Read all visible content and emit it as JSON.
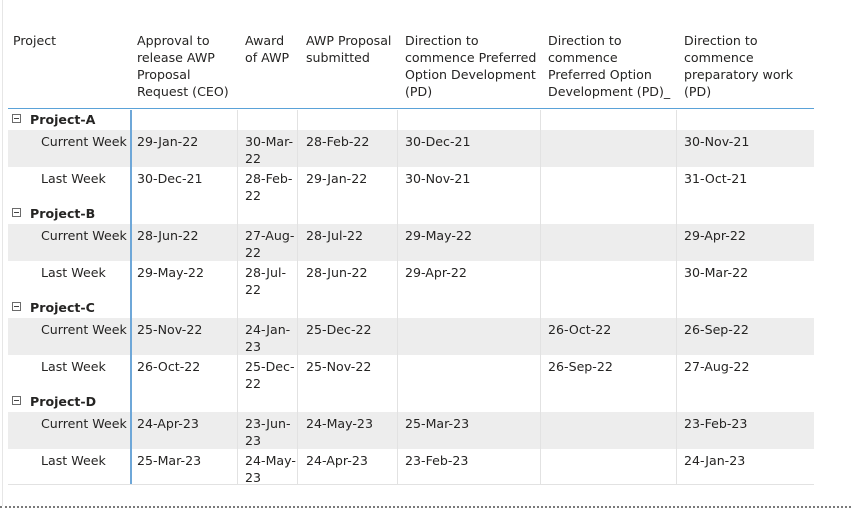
{
  "table": {
    "columns": [
      "Project",
      "Approval to release AWP Proposal Request (CEO)",
      "Award of AWP",
      "AWP Proposal submitted",
      "Direction to commence Preferred Option Development (PD)",
      "Direction to commence Preferred Option Development (PD)_",
      "Direction to commence preparatory work (PD)"
    ],
    "groups": [
      {
        "name": "Project-A",
        "rows": [
          {
            "label": "Current Week",
            "values": [
              "29-Jan-22",
              "30-Mar-22",
              "28-Feb-22",
              "30-Dec-21",
              "",
              "30-Nov-21"
            ]
          },
          {
            "label": "Last Week",
            "values": [
              "30-Dec-21",
              "28-Feb-22",
              "29-Jan-22",
              "30-Nov-21",
              "",
              "31-Oct-21"
            ]
          }
        ]
      },
      {
        "name": "Project-B",
        "rows": [
          {
            "label": "Current Week",
            "values": [
              "28-Jun-22",
              "27-Aug-22",
              "28-Jul-22",
              "29-May-22",
              "",
              "29-Apr-22"
            ]
          },
          {
            "label": "Last Week",
            "values": [
              "29-May-22",
              "28-Jul-22",
              "28-Jun-22",
              "29-Apr-22",
              "",
              "30-Mar-22"
            ]
          }
        ]
      },
      {
        "name": "Project-C",
        "rows": [
          {
            "label": "Current Week",
            "values": [
              "25-Nov-22",
              "24-Jan-23",
              "25-Dec-22",
              "",
              "26-Oct-22",
              "26-Sep-22"
            ]
          },
          {
            "label": "Last Week",
            "values": [
              "26-Oct-22",
              "25-Dec-22",
              "25-Nov-22",
              "",
              "26-Sep-22",
              "27-Aug-22"
            ]
          }
        ]
      },
      {
        "name": "Project-D",
        "rows": [
          {
            "label": "Current Week",
            "values": [
              "24-Apr-23",
              "23-Jun-23",
              "24-May-23",
              "25-Mar-23",
              "",
              "23-Feb-23"
            ]
          },
          {
            "label": "Last Week",
            "values": [
              "25-Mar-23",
              "24-May-23",
              "24-Apr-23",
              "23-Feb-23",
              "",
              "24-Jan-23"
            ]
          }
        ]
      }
    ]
  },
  "icons": {
    "expander": "collapse-minus-icon"
  },
  "colors": {
    "accent": "#5aa2d8",
    "shaded_row": "#ededed"
  }
}
